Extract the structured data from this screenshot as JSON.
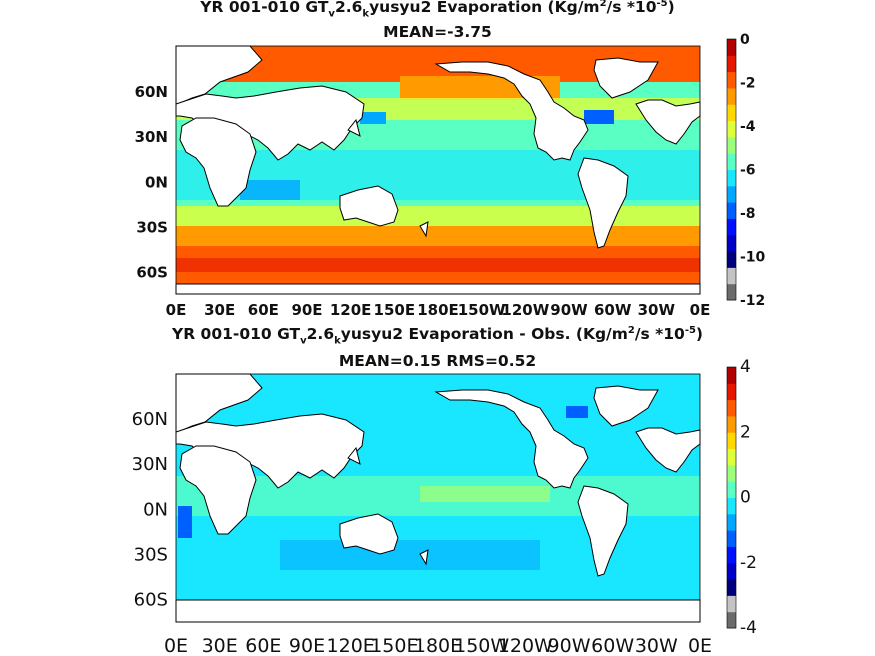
{
  "chart_data": [
    {
      "type": "heatmap",
      "title_parts": {
        "pre": "YR 001-010 GT",
        "sub1": "v",
        "mid": "2.6",
        "sub2": "k",
        "post": "yusyu2  Evaporation (Kg/m",
        "sup1": "2",
        "post2": "/s *10",
        "sup2": "-5",
        "end": ")"
      },
      "subtitle": "MEAN=-3.75",
      "x_ticks": [
        "0E",
        "30E",
        "60E",
        "90E",
        "120E",
        "150E",
        "180E",
        "150W",
        "120W",
        "90W",
        "60W",
        "30W",
        "0E"
      ],
      "y_ticks": [
        "60N",
        "30N",
        "0N",
        "30S",
        "60S"
      ],
      "colorbar": {
        "ticks": [
          "0",
          "-2",
          "-4",
          "-6",
          "-8",
          "-10",
          "-12"
        ],
        "range": [
          -12,
          0
        ]
      },
      "colors": [
        "#6b6b6b",
        "#c4c4c4",
        "#00007f",
        "#0000c8",
        "#0010ff",
        "#0060ff",
        "#00a8ff",
        "#19e6ff",
        "#5affc4",
        "#9cff7a",
        "#deff39",
        "#ffd800",
        "#ff9a00",
        "#ff5a00",
        "#e51700",
        "#b20000"
      ]
    },
    {
      "type": "heatmap",
      "title_parts": {
        "pre": "YR 001-010 GT",
        "sub1": "v",
        "mid": "2.6",
        "sub2": "k",
        "post": "yusyu2 Evaporation - Obs. (Kg/m",
        "sup1": "2",
        "post2": "/s *10",
        "sup2": "-5",
        "end": ")"
      },
      "subtitle": "MEAN=0.15   RMS=0.52",
      "x_ticks": [
        "0E",
        "30E",
        "60E",
        "90E",
        "120E",
        "150E",
        "180E",
        "150W",
        "120W",
        "90W",
        "60W",
        "30W",
        "0E"
      ],
      "y_ticks": [
        "60N",
        "30N",
        "0N",
        "30S",
        "60S"
      ],
      "colorbar": {
        "ticks": [
          "4",
          "2",
          "0",
          "-2",
          "-4"
        ],
        "range": [
          -4,
          4
        ]
      },
      "colors": [
        "#6b6b6b",
        "#c4c4c4",
        "#00007f",
        "#0000c8",
        "#0010ff",
        "#0060ff",
        "#00a8ff",
        "#19e6ff",
        "#5affc4",
        "#9cff7a",
        "#deff39",
        "#ffd800",
        "#ff9a00",
        "#ff5a00",
        "#e51700",
        "#b20000"
      ]
    }
  ]
}
